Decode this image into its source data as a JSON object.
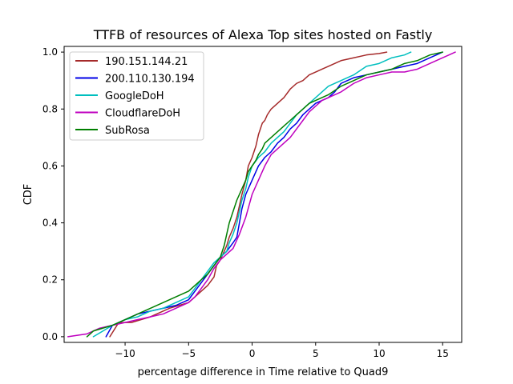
{
  "chart_data": {
    "type": "line",
    "title": "TTFB of resources of Alexa Top sites hosted on Fastly",
    "xlabel": "percentage difference in Time relative to Quad9",
    "ylabel": "CDF",
    "xlim": [
      -14.8,
      16.5
    ],
    "ylim": [
      -0.02,
      1.02
    ],
    "xticks": [
      -10,
      -5,
      0,
      5,
      10,
      15
    ],
    "yticks": [
      0.0,
      0.2,
      0.4,
      0.6,
      0.8,
      1.0
    ],
    "xtick_labels": [
      "−10",
      "−5",
      "0",
      "5",
      "10",
      "15"
    ],
    "ytick_labels": [
      "0.0",
      "0.2",
      "0.4",
      "0.6",
      "0.8",
      "1.0"
    ],
    "grid": false,
    "legend_position": "upper left",
    "series": [
      {
        "name": "190.151.144.21",
        "color": "#a52a2a",
        "x": [
          -11.2,
          -10.5,
          -9.5,
          -8,
          -6.5,
          -5,
          -4.5,
          -4,
          -3.5,
          -3,
          -2.8,
          -2.5,
          -2.2,
          -2,
          -1.8,
          -1.5,
          -1.2,
          -1,
          -0.8,
          -0.5,
          -0.3,
          0,
          0.3,
          0.5,
          0.8,
          1,
          1.2,
          1.5,
          2,
          2.5,
          3,
          3.5,
          4,
          4.5,
          5,
          5.5,
          6,
          7,
          8,
          9,
          10,
          10.6
        ],
        "y": [
          0.0,
          0.05,
          0.05,
          0.07,
          0.1,
          0.12,
          0.14,
          0.16,
          0.18,
          0.21,
          0.25,
          0.27,
          0.3,
          0.32,
          0.35,
          0.38,
          0.42,
          0.46,
          0.5,
          0.55,
          0.6,
          0.63,
          0.67,
          0.71,
          0.75,
          0.76,
          0.78,
          0.8,
          0.82,
          0.84,
          0.87,
          0.89,
          0.9,
          0.92,
          0.93,
          0.94,
          0.95,
          0.97,
          0.98,
          0.99,
          0.995,
          1.0
        ]
      },
      {
        "name": "200.110.130.194",
        "color": "#0000e6",
        "x": [
          -11.5,
          -11,
          -10,
          -9,
          -8,
          -6,
          -5,
          -4.5,
          -4,
          -3.5,
          -3,
          -2.5,
          -2,
          -1.5,
          -1.2,
          -1,
          -0.8,
          -0.5,
          0,
          0.5,
          1,
          1.5,
          2,
          2.5,
          3,
          3.5,
          4,
          4.5,
          5,
          5.5,
          6,
          6.5,
          7,
          7.5,
          8,
          9,
          10,
          11,
          12,
          13,
          14,
          14.5,
          15
        ],
        "y": [
          0.0,
          0.04,
          0.06,
          0.08,
          0.09,
          0.11,
          0.13,
          0.16,
          0.19,
          0.22,
          0.25,
          0.28,
          0.3,
          0.33,
          0.35,
          0.4,
          0.45,
          0.5,
          0.55,
          0.6,
          0.63,
          0.65,
          0.68,
          0.7,
          0.73,
          0.75,
          0.78,
          0.8,
          0.82,
          0.83,
          0.84,
          0.86,
          0.89,
          0.9,
          0.91,
          0.92,
          0.93,
          0.94,
          0.95,
          0.96,
          0.98,
          0.99,
          1.0
        ]
      },
      {
        "name": "GoogleDoH",
        "color": "#00bfbf",
        "x": [
          -12.5,
          -11,
          -10,
          -9,
          -8,
          -7,
          -6,
          -5,
          -4.5,
          -4,
          -3.5,
          -3,
          -2.5,
          -2,
          -1.8,
          -1.5,
          -1.2,
          -1,
          -0.8,
          -0.5,
          -0.3,
          0,
          0.5,
          1,
          1.5,
          2,
          2.5,
          3,
          3.5,
          4,
          4.5,
          5,
          5.5,
          6,
          7,
          8,
          9,
          10,
          11,
          12,
          12.5
        ],
        "y": [
          0.0,
          0.04,
          0.06,
          0.07,
          0.09,
          0.1,
          0.12,
          0.14,
          0.17,
          0.2,
          0.23,
          0.26,
          0.28,
          0.3,
          0.33,
          0.36,
          0.4,
          0.44,
          0.48,
          0.52,
          0.56,
          0.6,
          0.63,
          0.65,
          0.68,
          0.7,
          0.72,
          0.75,
          0.78,
          0.8,
          0.82,
          0.84,
          0.86,
          0.88,
          0.9,
          0.92,
          0.95,
          0.96,
          0.98,
          0.99,
          1.0
        ]
      },
      {
        "name": "CloudflareDoH",
        "color": "#bf00bf",
        "x": [
          -14.5,
          -13,
          -12,
          -11,
          -10,
          -9,
          -8,
          -7,
          -6,
          -5,
          -4.5,
          -4,
          -3.5,
          -3,
          -2.5,
          -2,
          -1.5,
          -1,
          -0.5,
          0,
          0.5,
          1,
          1.5,
          2,
          2.5,
          3,
          3.5,
          4,
          4.5,
          5,
          5.5,
          6,
          7,
          8,
          9,
          10,
          11,
          12,
          13,
          14,
          15,
          15.5,
          16
        ],
        "y": [
          0.0,
          0.01,
          0.03,
          0.04,
          0.05,
          0.06,
          0.07,
          0.08,
          0.1,
          0.12,
          0.14,
          0.17,
          0.2,
          0.24,
          0.27,
          0.29,
          0.31,
          0.36,
          0.42,
          0.5,
          0.55,
          0.6,
          0.64,
          0.66,
          0.68,
          0.7,
          0.73,
          0.76,
          0.79,
          0.81,
          0.83,
          0.84,
          0.86,
          0.89,
          0.91,
          0.92,
          0.93,
          0.93,
          0.94,
          0.96,
          0.98,
          0.99,
          1.0
        ]
      },
      {
        "name": "SubRosa",
        "color": "#007f00",
        "x": [
          -13,
          -12.5,
          -11,
          -10,
          -9,
          -8,
          -7,
          -6,
          -5,
          -4.5,
          -4,
          -3.5,
          -3,
          -2.5,
          -2.2,
          -2,
          -1.8,
          -1.5,
          -1.2,
          -1,
          -0.8,
          -0.5,
          -0.3,
          0,
          0.3,
          0.5,
          0.8,
          1,
          1.5,
          2,
          2.5,
          3,
          3.5,
          4,
          4.5,
          5,
          6,
          7,
          8,
          9,
          10,
          11,
          12,
          13,
          14,
          15
        ],
        "y": [
          0.0,
          0.02,
          0.04,
          0.06,
          0.08,
          0.1,
          0.12,
          0.14,
          0.16,
          0.18,
          0.2,
          0.22,
          0.25,
          0.28,
          0.32,
          0.36,
          0.4,
          0.44,
          0.48,
          0.5,
          0.52,
          0.55,
          0.58,
          0.6,
          0.62,
          0.64,
          0.66,
          0.68,
          0.7,
          0.72,
          0.74,
          0.76,
          0.78,
          0.8,
          0.82,
          0.83,
          0.85,
          0.88,
          0.9,
          0.92,
          0.93,
          0.94,
          0.96,
          0.97,
          0.99,
          1.0
        ]
      }
    ]
  }
}
